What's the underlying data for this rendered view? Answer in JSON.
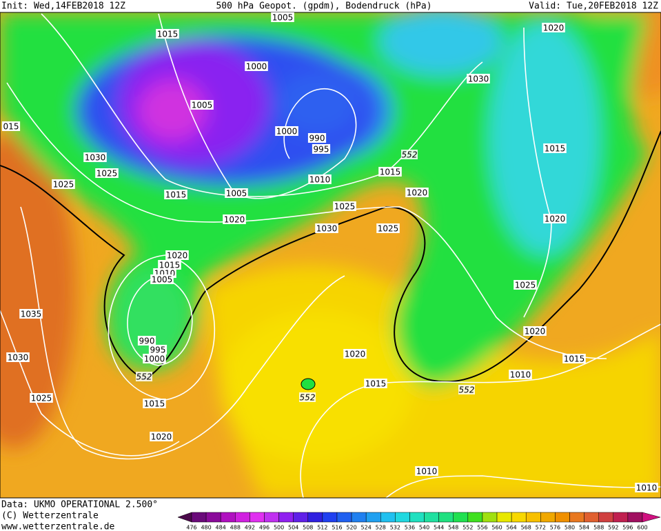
{
  "header": {
    "init": "Init: Wed,14FEB2018 12Z",
    "title": "500 hPa Geopot. (gpdm), Bodendruck (hPa)",
    "valid": "Valid: Tue,20FEB2018 12Z"
  },
  "footer": {
    "data": "Data: UKMO OPERATIONAL 2.500°",
    "copyright": "(C) Wetterzentrale",
    "url": "www.wetterzentrale.de"
  },
  "isobar_labels": [
    1005,
    1015,
    1000,
    1005,
    1000,
    990,
    995,
    1030,
    1025,
    1025,
    1015,
    1005,
    1010,
    1015,
    1020,
    1025,
    1020,
    1030,
    1025,
    "015",
    1020,
    1030,
    1015,
    1020,
    1025,
    1020,
    1015,
    1010,
    1020,
    1015,
    1010,
    1005,
    1035,
    990,
    995,
    1000,
    1030,
    1025,
    1015,
    1020,
    1020,
    1015,
    1010,
    1010
  ],
  "contour_labels": [
    552,
    552,
    552,
    552
  ],
  "colorbar": {
    "labels": [
      476,
      480,
      484,
      488,
      492,
      496,
      500,
      504,
      508,
      512,
      516,
      520,
      524,
      528,
      532,
      536,
      540,
      544,
      548,
      552,
      556,
      560,
      564,
      568,
      572,
      576,
      580,
      584,
      588,
      592,
      596,
      600
    ],
    "colors": [
      "#4b0a4b",
      "#6a0a7a",
      "#8a0a9a",
      "#b010c0",
      "#d020e0",
      "#e030f0",
      "#c030f0",
      "#9020f0",
      "#6020e8",
      "#3020e0",
      "#2040f0",
      "#2060f0",
      "#2080f0",
      "#20a0f0",
      "#20c0f0",
      "#20d8e0",
      "#20e0c0",
      "#20e0a0",
      "#20e080",
      "#20e050",
      "#40e020",
      "#a0e010",
      "#e8e800",
      "#f8d800",
      "#f8c000",
      "#f0a800",
      "#f09000",
      "#e87820",
      "#e06030",
      "#d04040",
      "#c02050",
      "#a01060",
      "#d01080"
    ]
  }
}
